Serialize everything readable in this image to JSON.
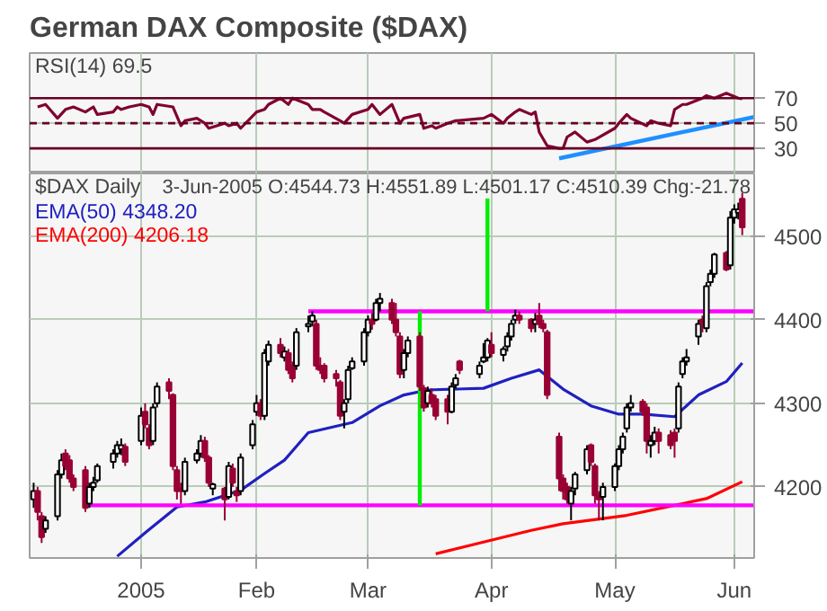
{
  "chart_data": [
    {
      "type": "line",
      "title": "German DAX Composite ($DAX)",
      "annotations": [
        "RSI(14) 69.5"
      ],
      "xlim": [
        "2004-12-06",
        "2005-06-06"
      ],
      "ylim": [
        10,
        106
      ],
      "yticks": [
        30,
        50,
        70
      ],
      "xticks": [
        {
          "value": "2005-01-03",
          "label": null
        },
        {
          "value": "2005-02-01",
          "label": null
        },
        {
          "value": "2005-03-01",
          "label": null
        },
        {
          "value": "2005-04-01",
          "label": null
        },
        {
          "value": "2005-05-02",
          "label": null
        },
        {
          "value": "2005-06-01",
          "label": null
        }
      ],
      "tick_labels": "y",
      "grid": true,
      "ref_lines": [
        {
          "axis": "y",
          "value": 70,
          "color": "#660022",
          "line_style": "solid"
        },
        {
          "axis": "y",
          "value": 50,
          "color": "#660022",
          "line_style": "dashed"
        },
        {
          "axis": "y",
          "value": 30,
          "color": "#660022",
          "line_style": "solid"
        }
      ],
      "series": [
        {
          "color": "#800030",
          "x": [
            "2004-12-08",
            "2004-12-10",
            "2004-12-13",
            "2004-12-15",
            "2004-12-17",
            "2004-12-20",
            "2004-12-22",
            "2004-12-23",
            "2004-12-27",
            "2004-12-28",
            "2004-12-29",
            "2004-12-31",
            "2005-01-03",
            "2005-01-05",
            "2005-01-06",
            "2005-01-07",
            "2005-01-11",
            "2005-01-13",
            "2005-01-14",
            "2005-01-17",
            "2005-01-19",
            "2005-01-20",
            "2005-01-24",
            "2005-01-25",
            "2005-01-27",
            "2005-01-28",
            "2005-02-01",
            "2005-02-03",
            "2005-02-04",
            "2005-02-07",
            "2005-02-09",
            "2005-02-10",
            "2005-02-14",
            "2005-02-15",
            "2005-02-17",
            "2005-02-18",
            "2005-02-22",
            "2005-02-23",
            "2005-02-25",
            "2005-03-01",
            "2005-03-02",
            "2005-03-04",
            "2005-03-07",
            "2005-03-09",
            "2005-03-10",
            "2005-03-14",
            "2005-03-15",
            "2005-03-17",
            "2005-03-18",
            "2005-03-21",
            "2005-03-23",
            "2005-03-30",
            "2005-04-01",
            "2005-04-04",
            "2005-04-05",
            "2005-04-07",
            "2005-04-08",
            "2005-04-11",
            "2005-04-12",
            "2005-04-13",
            "2005-04-15",
            "2005-04-18",
            "2005-04-19",
            "2005-04-20",
            "2005-04-22",
            "2005-04-25",
            "2005-04-27",
            "2005-05-02",
            "2005-05-03",
            "2005-05-05",
            "2005-05-06",
            "2005-05-10",
            "2005-05-11",
            "2005-05-13",
            "2005-05-16",
            "2005-05-17",
            "2005-05-19",
            "2005-05-20",
            "2005-05-24",
            "2005-05-25",
            "2005-05-27",
            "2005-05-30",
            "2005-06-02",
            "2005-06-03"
          ],
          "values": [
            63,
            65,
            54,
            61,
            63,
            59,
            63,
            57,
            59,
            63,
            61,
            63,
            65,
            63,
            57,
            65,
            63,
            48,
            52,
            54,
            50,
            46,
            50,
            48,
            50,
            46,
            59,
            61,
            65,
            70,
            65,
            70,
            65,
            61,
            61,
            59,
            52,
            50,
            57,
            61,
            65,
            57,
            65,
            50,
            54,
            57,
            46,
            48,
            46,
            50,
            52,
            54,
            57,
            50,
            54,
            59,
            61,
            57,
            59,
            43,
            32,
            30,
            30,
            39,
            43,
            35,
            37,
            46,
            50,
            57,
            54,
            48,
            52,
            50,
            48,
            61,
            65,
            65,
            70,
            72,
            70,
            74,
            70,
            69.5
          ]
        },
        {
          "color": "#1e90ff",
          "x": [
            "2005-04-18",
            "2005-06-06"
          ],
          "values": [
            22,
            55
          ]
        }
      ]
    },
    {
      "type": "candlestick",
      "colors": [
        "#ffffff",
        "#990033",
        "#990033",
        "#ffffff",
        "#ffffff",
        "#ffffff",
        "#990033",
        "#990033",
        "#990033",
        "#990033",
        "#ffffff",
        "#ffffff",
        "#ffffff",
        "#ffffff",
        "#ffffff",
        "#ffffff",
        "#990033",
        "#ffffff",
        "#990033",
        "#990033",
        "#ffffff",
        "#ffffff",
        "#990033",
        "#990033",
        "#990033",
        "#990033",
        "#ffffff",
        "#ffffff",
        "#ffffff",
        "#990033",
        "#990033",
        "#ffffff",
        "#990033",
        "#ffffff",
        "#990033",
        "#990033",
        "#ffffff",
        "#ffffff",
        "#ffffff",
        "#990033",
        "#ffffff",
        "#ffffff",
        "#990033",
        "#ffffff",
        "#990033",
        "#990033",
        "#ffffff",
        "#ffffff",
        "#ffffff",
        "#990033",
        "#990033",
        "#990033",
        "#990033",
        "#990033",
        "#ffffff",
        "#ffffff",
        "#ffffff",
        "#ffffff",
        "#ffffff",
        "#990033",
        "#ffffff",
        "#ffffff",
        "#990033",
        "#990033",
        "#990033",
        "#ffffff",
        "#ffffff",
        "#990033",
        "#990033",
        "#ffffff",
        "#990033",
        "#990033",
        "#990033",
        "#ffffff",
        "#ffffff",
        "#990033",
        "#ffffff",
        "#ffffff",
        "#ffffff",
        "#990033",
        "#ffffff",
        "#ffffff",
        "#ffffff",
        "#ffffff",
        "#990033",
        "#990033",
        "#ffffff",
        "#990033",
        "#990033",
        "#990033",
        "#990033",
        "#990033",
        "#990033",
        "#ffffff",
        "#ffffff",
        "#ffffff",
        "#990033",
        "#990033",
        "#990033",
        "#ffffff",
        "#ffffff",
        "#ffffff",
        "#ffffff",
        "#ffffff",
        "#ffffff",
        "#990033",
        "#990033",
        "#ffffff",
        "#ffffff",
        "#990033",
        "#990033",
        "#990033",
        "#ffffff",
        "#ffffff",
        "#ffffff",
        "#ffffff",
        "#990033",
        "#ffffff",
        "#ffffff",
        "#ffffff",
        "#990033",
        "#ffffff",
        "#ffffff",
        "#ffffff",
        "#990033"
      ],
      "annotations": [
        "$DAX Daily",
        "3-Jun-2005 O:4544.73 H:4551.89 L:4501.17 C:4510.39 Chg:-21.78"
      ],
      "xlim": [
        "2004-12-06",
        "2005-06-06"
      ],
      "ylim": [
        4115,
        4575
      ],
      "yticks": [
        4200,
        4300,
        4400,
        4500
      ],
      "xticks": [
        {
          "value": "2005-01-03",
          "label": "2005"
        },
        {
          "value": "2005-02-01",
          "label": "Feb"
        },
        {
          "value": "2005-03-01",
          "label": "Mar"
        },
        {
          "value": "2005-04-01",
          "label": "Apr"
        },
        {
          "value": "2005-05-02",
          "label": "May"
        },
        {
          "value": "2005-06-01",
          "label": "Jun"
        }
      ],
      "grid": true,
      "legend": "top left",
      "x": [
        "2004-12-07",
        "2004-12-08",
        "2004-12-09",
        "2004-12-10",
        "2004-12-13",
        "2004-12-14",
        "2004-12-15",
        "2004-12-16",
        "2004-12-17",
        "2004-12-20",
        "2004-12-21",
        "2004-12-22",
        "2004-12-23",
        "2004-12-27",
        "2004-12-28",
        "2004-12-29",
        "2004-12-30",
        "2005-01-03",
        "2005-01-04",
        "2005-01-05",
        "2005-01-06",
        "2005-01-07",
        "2005-01-10",
        "2005-01-11",
        "2005-01-12",
        "2005-01-13",
        "2005-01-14",
        "2005-01-17",
        "2005-01-18",
        "2005-01-19",
        "2005-01-20",
        "2005-01-21",
        "2005-01-24",
        "2005-01-25",
        "2005-01-26",
        "2005-01-27",
        "2005-01-28",
        "2005-01-31",
        "2005-02-01",
        "2005-02-02",
        "2005-02-03",
        "2005-02-04",
        "2005-02-07",
        "2005-02-08",
        "2005-02-09",
        "2005-02-10",
        "2005-02-11",
        "2005-02-14",
        "2005-02-15",
        "2005-02-16",
        "2005-02-17",
        "2005-02-18",
        "2005-02-21",
        "2005-02-22",
        "2005-02-23",
        "2005-02-24",
        "2005-02-25",
        "2005-02-28",
        "2005-03-01",
        "2005-03-02",
        "2005-03-03",
        "2005-03-04",
        "2005-03-07",
        "2005-03-08",
        "2005-03-09",
        "2005-03-10",
        "2005-03-11",
        "2005-03-14",
        "2005-03-15",
        "2005-03-16",
        "2005-03-17",
        "2005-03-18",
        "2005-03-21",
        "2005-03-22",
        "2005-03-23",
        "2005-03-24",
        "2005-03-29",
        "2005-03-30",
        "2005-03-31",
        "2005-04-01",
        "2005-04-04",
        "2005-04-05",
        "2005-04-06",
        "2005-04-07",
        "2005-04-08",
        "2005-04-11",
        "2005-04-12",
        "2005-04-13",
        "2005-04-14",
        "2005-04-15",
        "2005-04-18",
        "2005-04-19",
        "2005-04-20",
        "2005-04-21",
        "2005-04-22",
        "2005-04-25",
        "2005-04-26",
        "2005-04-27",
        "2005-04-28",
        "2005-04-29",
        "2005-05-02",
        "2005-05-03",
        "2005-05-04",
        "2005-05-05",
        "2005-05-06",
        "2005-05-09",
        "2005-05-10",
        "2005-05-11",
        "2005-05-12",
        "2005-05-13",
        "2005-05-16",
        "2005-05-17",
        "2005-05-18",
        "2005-05-19",
        "2005-05-20",
        "2005-05-23",
        "2005-05-24",
        "2005-05-25",
        "2005-05-26",
        "2005-05-27",
        "2005-05-30",
        "2005-05-31",
        "2005-06-01",
        "2005-06-02",
        "2005-06-03"
      ],
      "ohlc": [
        [
          4185,
          4205,
          4175,
          4195
        ],
        [
          4195,
          4200,
          4160,
          4170
        ],
        [
          4165,
          4170,
          4133,
          4140
        ],
        [
          4150,
          4165,
          4145,
          4160
        ],
        [
          4165,
          4220,
          4160,
          4215
        ],
        [
          4215,
          4240,
          4210,
          4232
        ],
        [
          4240,
          4245,
          4220,
          4225
        ],
        [
          4232,
          4238,
          4205,
          4210
        ],
        [
          4210,
          4215,
          4195,
          4200
        ],
        [
          4220,
          4225,
          4170,
          4175
        ],
        [
          4180,
          4205,
          4175,
          4200
        ],
        [
          4200,
          4212,
          4195,
          4205
        ],
        [
          4208,
          4228,
          4205,
          4225
        ],
        [
          4230,
          4245,
          4222,
          4240
        ],
        [
          4240,
          4255,
          4235,
          4250
        ],
        [
          4245,
          4258,
          4238,
          4250
        ],
        [
          4248,
          4252,
          4225,
          4230
        ],
        [
          4255,
          4295,
          4250,
          4285
        ],
        [
          4290,
          4300,
          4270,
          4275
        ],
        [
          4270,
          4275,
          4245,
          4250
        ],
        [
          4255,
          4300,
          4250,
          4295
        ],
        [
          4300,
          4325,
          4295,
          4320
        ],
        [
          4325,
          4330,
          4305,
          4315
        ],
        [
          4310,
          4312,
          4220,
          4225
        ],
        [
          4220,
          4225,
          4185,
          4195
        ],
        [
          4198,
          4205,
          4180,
          4195
        ],
        [
          4195,
          4235,
          4190,
          4230
        ],
        [
          4232,
          4245,
          4228,
          4240
        ],
        [
          4240,
          4262,
          4235,
          4255
        ],
        [
          4255,
          4260,
          4230,
          4235
        ],
        [
          4235,
          4238,
          4200,
          4205
        ],
        [
          4198,
          4205,
          4190,
          4203
        ],
        [
          4198,
          4200,
          4160,
          4185
        ],
        [
          4188,
          4230,
          4185,
          4225
        ],
        [
          4222,
          4228,
          4200,
          4205
        ],
        [
          4195,
          4200,
          4182,
          4190
        ],
        [
          4195,
          4240,
          4190,
          4235
        ],
        [
          4250,
          4280,
          4245,
          4275
        ],
        [
          4290,
          4310,
          4285,
          4300
        ],
        [
          4300,
          4305,
          4280,
          4285
        ],
        [
          4285,
          4365,
          4280,
          4360
        ],
        [
          4350,
          4375,
          4345,
          4370
        ],
        [
          4370,
          4378,
          4355,
          4360
        ],
        [
          4355,
          4368,
          4350,
          4362
        ],
        [
          4360,
          4365,
          4335,
          4340
        ],
        [
          4345,
          4350,
          4325,
          4330
        ],
        [
          4345,
          4390,
          4340,
          4385
        ],
        [
          4392,
          4405,
          4385,
          4395
        ],
        [
          4398,
          4410,
          4392,
          4405
        ],
        [
          4395,
          4400,
          4340,
          4345
        ],
        [
          4345,
          4355,
          4335,
          4340
        ],
        [
          4345,
          4348,
          4325,
          4330
        ],
        [
          4335,
          4340,
          4320,
          4330
        ],
        [
          4325,
          4328,
          4280,
          4285
        ],
        [
          4290,
          4305,
          4270,
          4300
        ],
        [
          4305,
          4345,
          4300,
          4340
        ],
        [
          4342,
          4355,
          4340,
          4350
        ],
        [
          4350,
          4390,
          4345,
          4385
        ],
        [
          4385,
          4405,
          4380,
          4400
        ],
        [
          4400,
          4408,
          4388,
          4395
        ],
        [
          4400,
          4425,
          4398,
          4420
        ],
        [
          4420,
          4432,
          4410,
          4425
        ],
        [
          4420,
          4425,
          4395,
          4400
        ],
        [
          4400,
          4420,
          4380,
          4385
        ],
        [
          4380,
          4385,
          4330,
          4335
        ],
        [
          4340,
          4365,
          4330,
          4360
        ],
        [
          4360,
          4380,
          4355,
          4375
        ],
        [
          4380,
          4385,
          4315,
          4320
        ],
        [
          4318,
          4322,
          4290,
          4295
        ],
        [
          4300,
          4320,
          4295,
          4315
        ],
        [
          4310,
          4318,
          4295,
          4300
        ],
        [
          4305,
          4310,
          4280,
          4285
        ],
        [
          4305,
          4310,
          4275,
          4290
        ],
        [
          4290,
          4325,
          4288,
          4320
        ],
        [
          4322,
          4335,
          4318,
          4330
        ],
        [
          4350,
          4352,
          4335,
          4340
        ],
        [
          4335,
          4350,
          4330,
          4345
        ],
        [
          4350,
          4372,
          4348,
          4355
        ],
        [
          4355,
          4378,
          4350,
          4375
        ],
        [
          4370,
          4385,
          4355,
          4360
        ],
        [
          4358,
          4368,
          4350,
          4365
        ],
        [
          4368,
          4385,
          4362,
          4380
        ],
        [
          4380,
          4400,
          4375,
          4395
        ],
        [
          4400,
          4412,
          4395,
          4405
        ],
        [
          4405,
          4410,
          4395,
          4400
        ],
        [
          4400,
          4402,
          4385,
          4390
        ],
        [
          4395,
          4408,
          4385,
          4400
        ],
        [
          4405,
          4420,
          4390,
          4395
        ],
        [
          4395,
          4400,
          4385,
          4390
        ],
        [
          4385,
          4388,
          4305,
          4310
        ],
        [
          4260,
          4265,
          4195,
          4210
        ],
        [
          4210,
          4215,
          4185,
          4195
        ],
        [
          4200,
          4205,
          4180,
          4185
        ],
        [
          4180,
          4200,
          4160,
          4195
        ],
        [
          4198,
          4218,
          4190,
          4215
        ],
        [
          4220,
          4250,
          4215,
          4245
        ],
        [
          4250,
          4252,
          4225,
          4230
        ],
        [
          4225,
          4228,
          4180,
          4190
        ],
        [
          4190,
          4195,
          4160,
          4185
        ],
        [
          4188,
          4205,
          4160,
          4200
        ],
        [
          4200,
          4228,
          4195,
          4225
        ],
        [
          4225,
          4250,
          4220,
          4245
        ],
        [
          4245,
          4265,
          4240,
          4260
        ],
        [
          4270,
          4300,
          4265,
          4295
        ],
        [
          4295,
          4310,
          4290,
          4300
        ],
        [
          4302,
          4305,
          4285,
          4290
        ],
        [
          4295,
          4300,
          4240,
          4255
        ],
        [
          4250,
          4262,
          4235,
          4255
        ],
        [
          4255,
          4272,
          4250,
          4265
        ],
        [
          4265,
          4270,
          4240,
          4255
        ],
        [
          4262,
          4268,
          4245,
          4250
        ],
        [
          4265,
          4270,
          4235,
          4255
        ],
        [
          4270,
          4325,
          4265,
          4320
        ],
        [
          4335,
          4355,
          4330,
          4350
        ],
        [
          4350,
          4365,
          4345,
          4355
        ],
        [
          4380,
          4400,
          4370,
          4395
        ],
        [
          4400,
          4405,
          4385,
          4395
        ],
        [
          4390,
          4445,
          4385,
          4440
        ],
        [
          4445,
          4460,
          4440,
          4455
        ],
        [
          4455,
          4480,
          4450,
          4478
        ],
        [
          4480,
          4482,
          4458,
          4460
        ],
        [
          4465,
          4530,
          4460,
          4522
        ],
        [
          4522,
          4538,
          4515,
          4532
        ],
        [
          4528,
          4540,
          4520,
          4532
        ],
        [
          4544.73,
          4551.89,
          4501.17,
          4510.39
        ]
      ],
      "series": [
        {
          "type": "line",
          "name": "EMA(50) 4348.20",
          "color": "#2020c0",
          "x": [
            "2004-12-28",
            "2005-01-04",
            "2005-01-12",
            "2005-01-19",
            "2005-01-28",
            "2005-02-03",
            "2005-02-08",
            "2005-02-14",
            "2005-02-25",
            "2005-03-04",
            "2005-03-10",
            "2005-03-16",
            "2005-03-30",
            "2005-04-06",
            "2005-04-13",
            "2005-04-19",
            "2005-04-26",
            "2005-05-03",
            "2005-05-09",
            "2005-05-17",
            "2005-05-23",
            "2005-05-30",
            "2005-06-03"
          ],
          "values": [
            4117,
            4145,
            4176,
            4182,
            4196,
            4216,
            4232,
            4265,
            4277,
            4297,
            4310,
            4316,
            4318,
            4330,
            4340,
            4317,
            4297,
            4287,
            4287,
            4284,
            4310,
            4326,
            4348.2
          ]
        },
        {
          "type": "line",
          "name": "EMA(200) 4206.18",
          "color": "#ff0000",
          "x": [
            "2005-03-18",
            "2005-04-11",
            "2005-04-19",
            "2005-05-05",
            "2005-05-17",
            "2005-05-25",
            "2005-06-03"
          ],
          "values": [
            4120,
            4148,
            4156,
            4166,
            4178,
            4186,
            4206.18
          ]
        },
        {
          "type": "line",
          "color": "#ff00ff",
          "x": [
            "2005-02-14",
            "2005-06-06"
          ],
          "values": [
            4410,
            4410
          ]
        },
        {
          "type": "line",
          "color": "#ff00ff",
          "x": [
            "2004-12-20",
            "2005-06-06"
          ],
          "values": [
            4178,
            4178
          ]
        },
        {
          "type": "line",
          "color": "#00ee00",
          "x": [
            "2005-03-14",
            "2005-03-14"
          ],
          "values": [
            4178,
            4410
          ]
        },
        {
          "type": "line",
          "color": "#00ee00",
          "x": [
            "2005-03-31",
            "2005-03-31"
          ],
          "values": [
            4410,
            4545
          ]
        }
      ]
    }
  ]
}
